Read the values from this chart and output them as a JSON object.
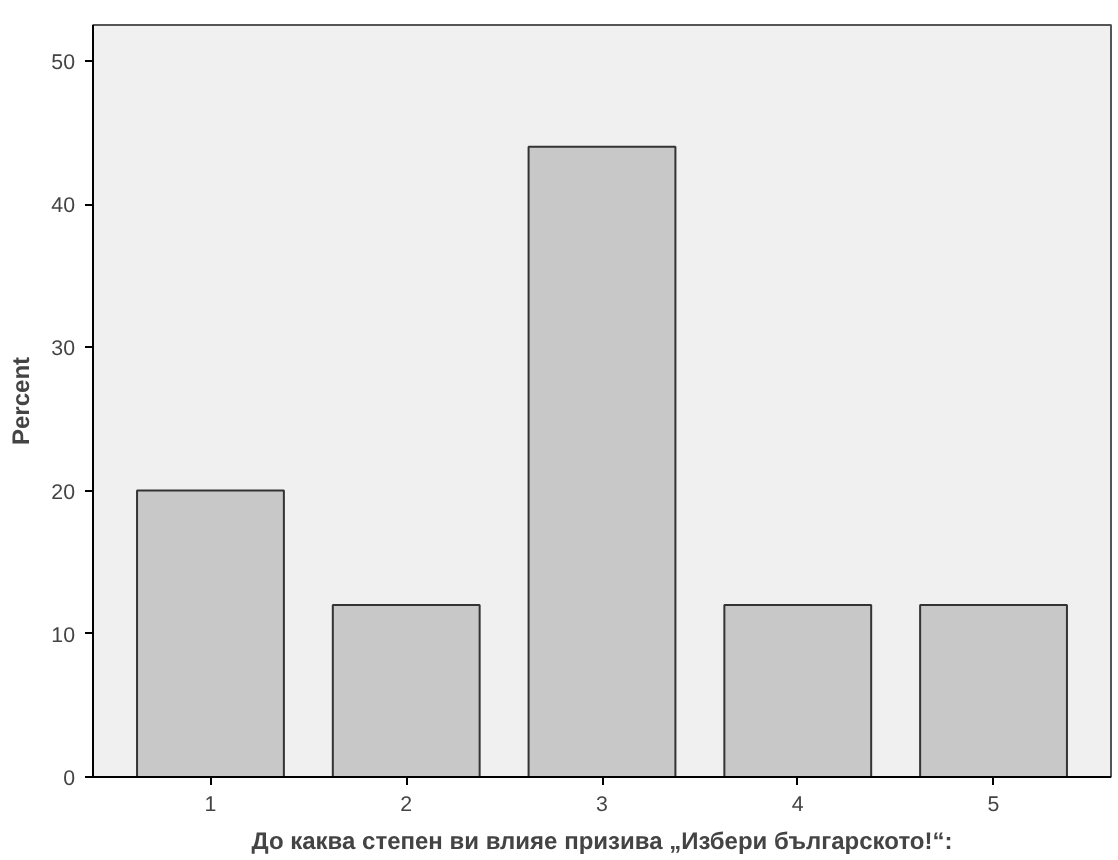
{
  "chart_data": {
    "type": "bar",
    "xlabel": "До каква степен ви влияе призива „Избери българското!“:",
    "ylabel": "Percent",
    "categories": [
      "1",
      "2",
      "3",
      "4",
      "5"
    ],
    "values": [
      20,
      12,
      44,
      12,
      12
    ],
    "color": "#c8c8c8",
    "ylim": [
      0,
      52.5
    ],
    "yticks": [
      0,
      10,
      20,
      30,
      40,
      50
    ],
    "grid": false
  }
}
